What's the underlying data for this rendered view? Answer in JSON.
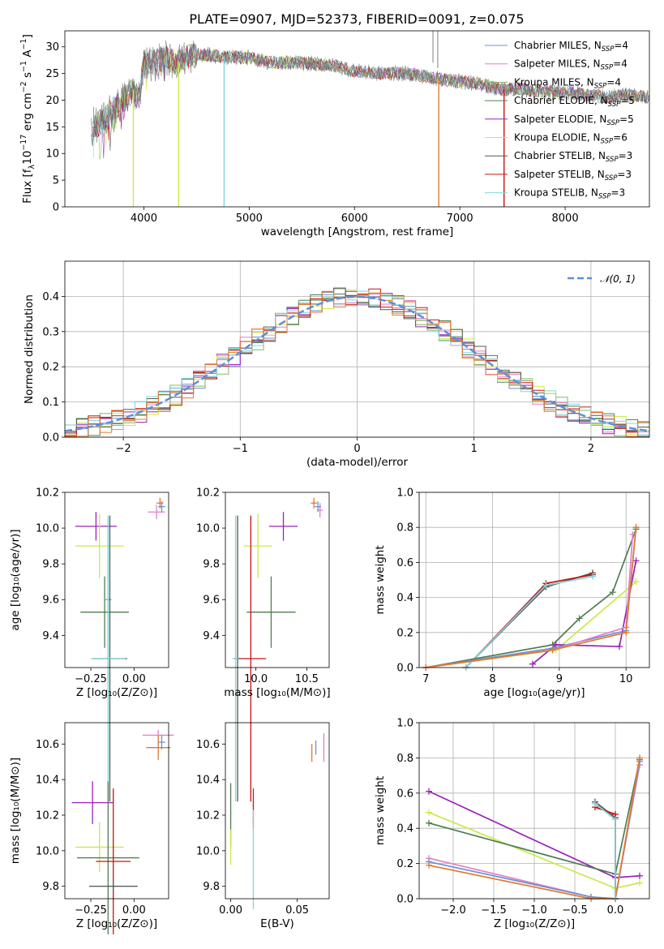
{
  "title": "PLATE=0907, MJD=52373, FIBERID=0091, z=0.075",
  "colors": {
    "chabrier_miles": "#6d8fd4",
    "salpeter_miles": "#e07fc8",
    "kroupa_miles": "#7fb86a",
    "chabrier_elodie": "#4f7d52",
    "salpeter_elodie": "#9a22b8",
    "kroupa_elodie": "#c9ea4a",
    "chabrier_stelib": "#555555",
    "salpeter_stelib": "#cc1111",
    "kroupa_stelib": "#7fd7dc",
    "orange": "#e07a2f",
    "normal": "#5f8fd6"
  },
  "chart_data": [
    {
      "id": "spectrum",
      "type": "line",
      "xlabel": "wavelength [Angstrom, rest frame]",
      "ylabel_parts": [
        "Flux [f",
        "λ",
        "10",
        "−17",
        " erg cm",
        "−2",
        " s",
        "−1",
        " A",
        "−1",
        "]"
      ],
      "xlim": [
        3250,
        8800
      ],
      "ylim": [
        0,
        33
      ],
      "xticks": [
        "4000",
        "5000",
        "6000",
        "7000",
        "8000"
      ],
      "yticks": [
        "0",
        "5",
        "10",
        "15",
        "20",
        "25",
        "30"
      ],
      "legend": "top-right",
      "series": [
        {
          "key": "chabrier_miles",
          "label": "Chabrier MILES, N",
          "sub": "SSP",
          "tail": "=4"
        },
        {
          "key": "salpeter_miles",
          "label": "Salpeter MILES, N",
          "sub": "SSP",
          "tail": "=4"
        },
        {
          "key": "kroupa_miles",
          "label": "Kroupa MILES, N",
          "sub": "SSP",
          "tail": "=4"
        },
        {
          "key": "chabrier_elodie",
          "label": "Chabrier ELODIE, N",
          "sub": "SSP",
          "tail": "=5"
        },
        {
          "key": "salpeter_elodie",
          "label": "Salpeter ELODIE, N",
          "sub": "SSP",
          "tail": "=5"
        },
        {
          "key": "kroupa_elodie",
          "label": "Kroupa ELODIE, N",
          "sub": "SSP",
          "tail": "=6"
        },
        {
          "key": "chabrier_stelib",
          "label": "Chabrier STELIB, N",
          "sub": "SSP",
          "tail": "=3"
        },
        {
          "key": "salpeter_stelib",
          "label": "Salpeter STELIB, N",
          "sub": "SSP",
          "tail": "=3"
        },
        {
          "key": "kroupa_stelib",
          "label": "Kroupa STELIB, N",
          "sub": "SSP",
          "tail": "=3"
        }
      ],
      "continuum": [
        [
          3500,
          15
        ],
        [
          3600,
          16
        ],
        [
          3700,
          18
        ],
        [
          3800,
          20
        ],
        [
          3900,
          22
        ],
        [
          3950,
          20
        ],
        [
          4000,
          27
        ],
        [
          4100,
          27
        ],
        [
          4200,
          28
        ],
        [
          4300,
          27
        ],
        [
          4400,
          28
        ],
        [
          4500,
          28.5
        ],
        [
          4600,
          28.5
        ],
        [
          4800,
          28
        ],
        [
          5000,
          28
        ],
        [
          5200,
          27
        ],
        [
          5500,
          27
        ],
        [
          5800,
          26.5
        ],
        [
          6000,
          25.5
        ],
        [
          6200,
          25
        ],
        [
          6500,
          25
        ],
        [
          6800,
          24
        ],
        [
          7000,
          23.5
        ],
        [
          7200,
          23
        ],
        [
          7400,
          22
        ],
        [
          7600,
          22
        ],
        [
          7800,
          21.5
        ],
        [
          8000,
          21.5
        ],
        [
          8200,
          21
        ],
        [
          8400,
          20.5
        ],
        [
          8600,
          21
        ],
        [
          8800,
          20.5
        ]
      ],
      "glitches": [
        [
          3900,
          0
        ],
        [
          4330,
          0
        ],
        [
          4762,
          0
        ],
        [
          6800,
          0
        ],
        [
          7420,
          0
        ]
      ]
    },
    {
      "id": "residuals",
      "type": "bar",
      "xlabel": "(data-model)/error",
      "ylabel": "Normed distribution",
      "xlim": [
        -2.5,
        2.5
      ],
      "ylim": [
        0,
        0.5
      ],
      "xticks": [
        -2,
        -1,
        0,
        1,
        2
      ],
      "xtick_labels": [
        "−2",
        "−1",
        "0",
        "1",
        "2"
      ],
      "yticks": [
        "0.0",
        "0.1",
        "0.2",
        "0.3",
        "0.4"
      ],
      "legend_label": "𝒩(0, 1)",
      "bin_width": 0.1,
      "grid": true
    },
    {
      "id": "age-vs-Z",
      "type": "scatter",
      "xlabel": "Z [log₁₀(Z/Z⊙)]",
      "ylabel": "age  [log₁₀(age/yr)]",
      "xlim": [
        -0.4,
        0.2
      ],
      "ylim": [
        9.22,
        10.2
      ],
      "xticks": [
        -0.25,
        0.0
      ],
      "xtick_labels": [
        "−0.25",
        "0.00"
      ],
      "yticks": [
        9.4,
        9.6,
        9.8,
        10.0,
        10.2
      ],
      "ytick_labels": [
        "9.4",
        "9.6",
        "9.8",
        "10.0",
        "10.2"
      ],
      "points": [
        {
          "c": "salpeter_elodie",
          "x": -0.22,
          "y": 10.01,
          "ex": 0.12,
          "ey": 0.08
        },
        {
          "c": "kroupa_elodie",
          "x": -0.2,
          "y": 9.9,
          "ex": 0.14,
          "ey": 0.18
        },
        {
          "c": "chabrier_elodie",
          "x": -0.17,
          "y": 9.53,
          "ex": 0.14,
          "ey": 0.2
        },
        {
          "c": "kroupa_miles",
          "x": -0.15,
          "y": 9.6,
          "ex": 0.02,
          "ey": 0.45
        },
        {
          "c": "chabrier_stelib",
          "x": -0.14,
          "y": 9.27,
          "ex": 0.1,
          "ey": 0.8
        },
        {
          "c": "kroupa_stelib",
          "x": -0.15,
          "y": 9.27,
          "ex": 0.1,
          "ey": 0.8
        },
        {
          "c": "orange",
          "x": 0.15,
          "y": 10.14,
          "ex": 0.02,
          "ey": 0.03
        },
        {
          "c": "salpeter_miles",
          "x": 0.13,
          "y": 10.09,
          "ex": 0.05,
          "ey": 0.04
        },
        {
          "c": "chabrier_miles",
          "x": 0.16,
          "y": 10.12,
          "ex": 0.02,
          "ey": 0.03
        }
      ]
    },
    {
      "id": "age-vs-mass",
      "type": "scatter",
      "xlabel": "mass [log₁₀(M/M⊙)]",
      "ylabel": "",
      "xlim": [
        9.7,
        10.72
      ],
      "ylim": [
        9.22,
        10.2
      ],
      "xticks": [
        10.0,
        10.5
      ],
      "xtick_labels": [
        "10.0",
        "10.5"
      ],
      "yticks": [
        9.4,
        9.6,
        9.8,
        10.0,
        10.2
      ],
      "ytick_labels": [
        "9.4",
        "9.6",
        "9.8",
        "10.0",
        "10.2"
      ],
      "points": [
        {
          "c": "salpeter_elodie",
          "x": 10.27,
          "y": 10.01,
          "ex": 0.14,
          "ey": 0.08
        },
        {
          "c": "kroupa_elodie",
          "x": 10.02,
          "y": 9.9,
          "ex": 0.14,
          "ey": 0.18
        },
        {
          "c": "chabrier_elodie",
          "x": 10.15,
          "y": 9.53,
          "ex": 0.24,
          "ey": 0.2
        },
        {
          "c": "salpeter_stelib",
          "x": 9.95,
          "y": 9.27,
          "ex": 0.15,
          "ey": 0.8
        },
        {
          "c": "chabrier_stelib",
          "x": 9.82,
          "y": 9.27,
          "ex": 0.03,
          "ey": 0.8
        },
        {
          "c": "kroupa_stelib",
          "x": 9.8,
          "y": 9.27,
          "ex": 0.03,
          "ey": 0.8
        },
        {
          "c": "orange",
          "x": 10.57,
          "y": 10.14,
          "ex": 0.03,
          "ey": 0.03
        },
        {
          "c": "salpeter_miles",
          "x": 10.63,
          "y": 10.1,
          "ex": 0.03,
          "ey": 0.04
        },
        {
          "c": "chabrier_miles",
          "x": 10.61,
          "y": 10.12,
          "ex": 0.03,
          "ey": 0.03
        }
      ]
    },
    {
      "id": "mass-weight-vs-age",
      "type": "line",
      "xlabel": "age  [log₁₀(age/yr)]",
      "ylabel": "mass weight",
      "xlim": [
        6.9,
        10.35
      ],
      "ylim": [
        0,
        1
      ],
      "xticks": [
        7,
        8,
        9,
        10
      ],
      "xtick_labels": [
        "7",
        "8",
        "9",
        "10"
      ],
      "yticks": [
        0,
        0.2,
        0.4,
        0.6,
        0.8,
        1.0
      ],
      "ytick_labels": [
        "0.0",
        "0.2",
        "0.4",
        "0.6",
        "0.8",
        "1.0"
      ],
      "grid": true,
      "series": [
        {
          "c": "chabrier_stelib",
          "pts": [
            [
              7.6,
              0.0
            ],
            [
              8.8,
              0.46
            ],
            [
              9.5,
              0.54
            ]
          ]
        },
        {
          "c": "salpeter_stelib",
          "pts": [
            [
              7.6,
              0.0
            ],
            [
              8.8,
              0.48
            ],
            [
              9.5,
              0.53
            ]
          ]
        },
        {
          "c": "kroupa_stelib",
          "pts": [
            [
              7.6,
              0.0
            ],
            [
              8.8,
              0.47
            ],
            [
              9.5,
              0.52
            ]
          ]
        },
        {
          "c": "chabrier_elodie",
          "pts": [
            [
              7.0,
              0.0
            ],
            [
              8.9,
              0.13
            ],
            [
              9.3,
              0.28
            ],
            [
              9.8,
              0.43
            ],
            [
              10.15,
              0.79
            ]
          ]
        },
        {
          "c": "kroupa_elodie",
          "pts": [
            [
              7.0,
              0.0
            ],
            [
              8.95,
              0.1
            ],
            [
              10.15,
              0.49
            ]
          ]
        },
        {
          "c": "salpeter_elodie",
          "pts": [
            [
              8.6,
              0.02
            ],
            [
              8.95,
              0.13
            ],
            [
              9.9,
              0.12
            ],
            [
              10.15,
              0.61
            ]
          ]
        },
        {
          "c": "chabrier_miles",
          "pts": [
            [
              7.0,
              0.0
            ],
            [
              8.9,
              0.11
            ],
            [
              10.0,
              0.21
            ],
            [
              10.15,
              0.8
            ]
          ]
        },
        {
          "c": "salpeter_miles",
          "pts": [
            [
              7.0,
              0.0
            ],
            [
              8.9,
              0.1
            ],
            [
              10.0,
              0.23
            ],
            [
              10.1,
              0.76
            ]
          ]
        },
        {
          "c": "orange",
          "pts": [
            [
              7.0,
              0.0
            ],
            [
              8.9,
              0.1
            ],
            [
              10.0,
              0.2
            ],
            [
              10.15,
              0.8
            ]
          ]
        }
      ]
    },
    {
      "id": "mass-vs-Z",
      "type": "scatter",
      "xlabel": "Z [log₁₀(Z/Z⊙)]",
      "ylabel": "mass [log₁₀(M/M⊙)]",
      "xlim": [
        -0.4,
        0.2
      ],
      "ylim": [
        9.73,
        10.72
      ],
      "xticks": [
        -0.25,
        0.0
      ],
      "xtick_labels": [
        "−0.25",
        "0.00"
      ],
      "yticks": [
        9.8,
        10.0,
        10.2,
        10.4,
        10.6
      ],
      "ytick_labels": [
        "9.8",
        "10.0",
        "10.2",
        "10.4",
        "10.6"
      ],
      "points": [
        {
          "c": "salpeter_elodie",
          "x": -0.24,
          "y": 10.27,
          "ex": 0.12,
          "ey": 0.12
        },
        {
          "c": "kroupa_elodie",
          "x": -0.2,
          "y": 10.02,
          "ex": 0.14,
          "ey": 0.14
        },
        {
          "c": "chabrier_elodie",
          "x": -0.15,
          "y": 9.96,
          "ex": 0.18,
          "ey": 0.43
        },
        {
          "c": "salpeter_stelib",
          "x": -0.12,
          "y": 9.94,
          "ex": 0.1,
          "ey": 0.41
        },
        {
          "c": "kroupa_stelib",
          "x": -0.12,
          "y": 9.8,
          "ex": 0.14,
          "ey": 0.03
        },
        {
          "c": "chabrier_stelib",
          "x": -0.12,
          "y": 9.8,
          "ex": 0.14,
          "ey": 0.03
        },
        {
          "c": "salpeter_miles",
          "x": 0.14,
          "y": 10.65,
          "ex": 0.09,
          "ey": 0.03
        },
        {
          "c": "orange",
          "x": 0.14,
          "y": 10.58,
          "ex": 0.07,
          "ey": 0.07
        },
        {
          "c": "chabrier_miles",
          "x": 0.16,
          "y": 10.61,
          "ex": 0.02,
          "ey": 0.04
        }
      ]
    },
    {
      "id": "mass-vs-ebv",
      "type": "scatter",
      "xlabel": "E(B-V)",
      "ylabel": "",
      "xlim": [
        -0.004,
        0.074
      ],
      "ylim": [
        9.73,
        10.72
      ],
      "xticks": [
        0.0,
        0.05
      ],
      "xtick_labels": [
        "0.00",
        "0.05"
      ],
      "yticks": [
        9.8,
        10.0,
        10.2,
        10.4,
        10.6
      ],
      "ytick_labels": [
        "9.8",
        "10.0",
        "10.2",
        "10.4",
        "10.6"
      ],
      "points": [
        {
          "c": "chabrier_elodie",
          "x": 0.0,
          "y": 10.2,
          "ex": 0.0,
          "ey": 0.18
        },
        {
          "c": "kroupa_elodie",
          "x": 0.0,
          "y": 10.02,
          "ex": 0.0,
          "ey": 0.1
        },
        {
          "c": "salpeter_stelib",
          "x": 0.017,
          "y": 10.24,
          "ex": 0.0,
          "ey": 0.11
        },
        {
          "c": "kroupa_stelib",
          "x": 0.017,
          "y": 9.95,
          "ex": 0.0,
          "ey": 0.28
        },
        {
          "c": "orange",
          "x": 0.061,
          "y": 10.55,
          "ex": 0.0,
          "ey": 0.05
        },
        {
          "c": "chabrier_miles",
          "x": 0.064,
          "y": 10.58,
          "ex": 0.0,
          "ey": 0.04
        },
        {
          "c": "salpeter_miles",
          "x": 0.07,
          "y": 10.58,
          "ex": 0.0,
          "ey": 0.08
        }
      ]
    },
    {
      "id": "mass-weight-vs-Z",
      "type": "line",
      "xlabel": "Z [log₁₀(Z/Z⊙)]",
      "ylabel": "mass weight",
      "xlim": [
        -2.42,
        0.42
      ],
      "ylim": [
        0,
        1
      ],
      "xticks": [
        -2.0,
        -1.5,
        -1.0,
        -0.5,
        0.0
      ],
      "xtick_labels": [
        "−2.0",
        "−1.5",
        "−1.0",
        "−0.5",
        "0.0"
      ],
      "yticks": [
        0,
        0.2,
        0.4,
        0.6,
        0.8,
        1.0
      ],
      "ytick_labels": [
        "0.0",
        "0.2",
        "0.4",
        "0.6",
        "0.8",
        "1.0"
      ],
      "grid": true,
      "series": [
        {
          "c": "salpeter_elodie",
          "pts": [
            [
              -2.3,
              0.61
            ],
            [
              0.0,
              0.12
            ],
            [
              0.3,
              0.13
            ]
          ]
        },
        {
          "c": "kroupa_elodie",
          "pts": [
            [
              -2.3,
              0.49
            ],
            [
              0.0,
              0.06
            ],
            [
              0.3,
              0.09
            ]
          ]
        },
        {
          "c": "chabrier_elodie",
          "pts": [
            [
              -2.3,
              0.43
            ],
            [
              0.0,
              0.14
            ],
            [
              0.3,
              0.79
            ]
          ]
        },
        {
          "c": "salpeter_miles",
          "pts": [
            [
              -2.3,
              0.23
            ],
            [
              -0.3,
              0.01
            ],
            [
              0.0,
              0.0
            ],
            [
              0.3,
              0.76
            ]
          ]
        },
        {
          "c": "chabrier_miles",
          "pts": [
            [
              -2.3,
              0.21
            ],
            [
              -0.3,
              0.01
            ],
            [
              0.0,
              0.0
            ],
            [
              0.3,
              0.78
            ]
          ]
        },
        {
          "c": "orange",
          "pts": [
            [
              -2.3,
              0.19
            ],
            [
              -0.3,
              0.0
            ],
            [
              0.0,
              0.0
            ],
            [
              0.3,
              0.8
            ]
          ]
        },
        {
          "c": "chabrier_stelib",
          "pts": [
            [
              -0.25,
              0.55
            ],
            [
              0.0,
              0.46
            ],
            [
              0.0,
              0.0
            ]
          ]
        },
        {
          "c": "salpeter_stelib",
          "pts": [
            [
              -0.25,
              0.52
            ],
            [
              0.0,
              0.48
            ],
            [
              0.0,
              0.0
            ]
          ]
        },
        {
          "c": "kroupa_stelib",
          "pts": [
            [
              -0.25,
              0.54
            ],
            [
              0.0,
              0.45
            ],
            [
              0.0,
              0.0
            ]
          ]
        }
      ]
    }
  ]
}
